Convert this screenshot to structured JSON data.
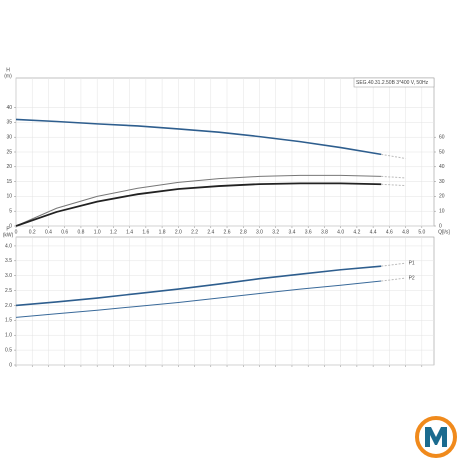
{
  "chart_data": [
    {
      "type": "line",
      "title": "SEG.40.31.2.50B  3*400 V, 50Hz",
      "y_label": "H",
      "y_unit": "(m)",
      "x_label": "Q[l/s]",
      "xlim": [
        0,
        5.15
      ],
      "ylim": [
        0,
        50
      ],
      "y2lim": [
        0,
        100
      ],
      "grid": true,
      "xticks": [
        0,
        0.2,
        0.4,
        0.6,
        0.8,
        {
          "value": 1,
          "label": "1.0"
        },
        1.2,
        1.4,
        1.6,
        1.8,
        {
          "value": 2,
          "label": "2.0"
        },
        2.2,
        2.4,
        2.6,
        2.8,
        {
          "value": 3,
          "label": "3.0"
        },
        3.2,
        3.4,
        3.6,
        3.8,
        {
          "value": 4,
          "label": "4.0"
        },
        4.2,
        4.4,
        4.6,
        4.8,
        {
          "value": 5,
          "label": "5.0"
        }
      ],
      "yticks": [
        0,
        5,
        10,
        15,
        20,
        25,
        30,
        35,
        40
      ],
      "y2ticks": [
        0,
        10,
        20,
        30,
        40,
        50,
        60
      ],
      "series": [
        {
          "color": "#2e5e8e",
          "width": 1.6,
          "x": [
            0,
            0.5,
            1,
            1.5,
            2,
            2.5,
            3,
            3.5,
            4,
            4.5
          ],
          "values": [
            36,
            35.3,
            34.5,
            33.8,
            32.8,
            31.7,
            30.2,
            28.5,
            26.5,
            24.2
          ]
        },
        {
          "color": "#bbbbbb",
          "dashed": true,
          "width": 1,
          "x": [
            4.5,
            4.8
          ],
          "values": [
            24.2,
            22.8
          ]
        },
        {
          "color": "#777777",
          "axis": "y2",
          "width": 1,
          "x": [
            0,
            0.5,
            1,
            1.5,
            2,
            2.5,
            3,
            3.5,
            4,
            4.5
          ],
          "values": [
            0,
            12,
            20,
            25.5,
            29.5,
            32,
            33.5,
            34.2,
            34.2,
            33.5
          ]
        },
        {
          "color": "#bbbbbb",
          "axis": "y2",
          "dashed": true,
          "width": 1,
          "x": [
            4.5,
            4.8
          ],
          "values": [
            33.5,
            32.5
          ]
        },
        {
          "color": "#222222",
          "axis": "y2",
          "width": 1.8,
          "x": [
            0,
            0.5,
            1,
            1.5,
            2,
            2.5,
            3,
            3.5,
            4,
            4.5
          ],
          "values": [
            0,
            9.5,
            16.5,
            21.5,
            25,
            27,
            28.3,
            28.8,
            28.8,
            28.2
          ]
        },
        {
          "color": "#bbbbbb",
          "axis": "y2",
          "dashed": true,
          "width": 1,
          "x": [
            4.5,
            4.8
          ],
          "values": [
            28.2,
            27.3
          ]
        }
      ]
    },
    {
      "type": "line",
      "y_label": "P",
      "y_unit": "(kW)",
      "xlim": [
        0,
        5.15
      ],
      "ylim": [
        0,
        4.3
      ],
      "grid": true,
      "xticks": [
        0,
        0.2,
        0.4,
        0.6,
        0.8,
        1,
        1.2,
        1.4,
        1.6,
        1.8,
        2,
        2.2,
        2.4,
        2.6,
        2.8,
        3,
        3.2,
        3.4,
        3.6,
        3.8,
        4,
        4.2,
        4.4,
        4.6,
        4.8,
        5
      ],
      "yticks": [
        0,
        0.5,
        {
          "value": 1,
          "label": "1.0"
        },
        1.5,
        {
          "value": 2,
          "label": "2.0"
        },
        2.5,
        {
          "value": 3,
          "label": "3.0"
        },
        3.5,
        {
          "value": 4,
          "label": "4.0"
        }
      ],
      "series": [
        {
          "color": "#2e5e8e",
          "width": 1.6,
          "x": [
            0,
            0.5,
            1,
            1.5,
            2,
            2.5,
            3,
            3.5,
            4,
            4.5
          ],
          "values": [
            2.0,
            2.12,
            2.25,
            2.4,
            2.55,
            2.72,
            2.9,
            3.05,
            3.2,
            3.32
          ]
        },
        {
          "name": "P1",
          "color": "#bbbbbb",
          "dashed": true,
          "width": 1,
          "x": [
            4.5,
            4.8
          ],
          "values": [
            3.32,
            3.42
          ]
        },
        {
          "color": "#3a6a9a",
          "width": 1,
          "x": [
            0,
            0.5,
            1,
            1.5,
            2,
            2.5,
            3,
            3.5,
            4,
            4.5
          ],
          "values": [
            1.6,
            1.72,
            1.84,
            1.97,
            2.1,
            2.25,
            2.4,
            2.55,
            2.68,
            2.82
          ]
        },
        {
          "name": "P2",
          "color": "#bbbbbb",
          "dashed": true,
          "width": 1,
          "x": [
            4.5,
            4.8
          ],
          "values": [
            2.82,
            2.92
          ]
        }
      ]
    }
  ]
}
